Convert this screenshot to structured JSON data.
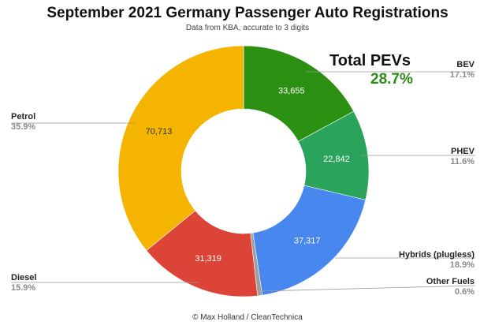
{
  "chart_data": {
    "type": "pie",
    "donut": true,
    "title": "September 2021 Germany Passenger Auto Registrations",
    "subtitle": "Data from KBA, accurate to 3 digits",
    "credit": "© Max Holland / CleanTechnica",
    "callout": {
      "label": "Total PEVs",
      "value": "28.7%",
      "color": "#2e8b16"
    },
    "slices": [
      {
        "name": "BEV",
        "value": 33655,
        "value_label": "33,655",
        "percent": "17.1%",
        "color": "#2b8f12",
        "label_color": "#ffffff"
      },
      {
        "name": "PHEV",
        "value": 22842,
        "value_label": "22,842",
        "percent": "11.6%",
        "color": "#2aa35c",
        "label_color": "#ffffff"
      },
      {
        "name": "Hybrids (plugless)",
        "value": 37317,
        "value_label": "37,317",
        "percent": "18.9%",
        "color": "#4787ee",
        "label_color": "#ffffff"
      },
      {
        "name": "Other Fuels",
        "value": 1200,
        "value_label": "",
        "percent": "0.6%",
        "color": "#9e9e9e",
        "label_color": "#ffffff"
      },
      {
        "name": "Diesel",
        "value": 31319,
        "value_label": "31,319",
        "percent": "15.9%",
        "color": "#db4437",
        "label_color": "#ffffff"
      },
      {
        "name": "Petrol",
        "value": 70713,
        "value_label": "70,713",
        "percent": "35.9%",
        "color": "#f4b400",
        "label_color": "#333333"
      }
    ]
  }
}
